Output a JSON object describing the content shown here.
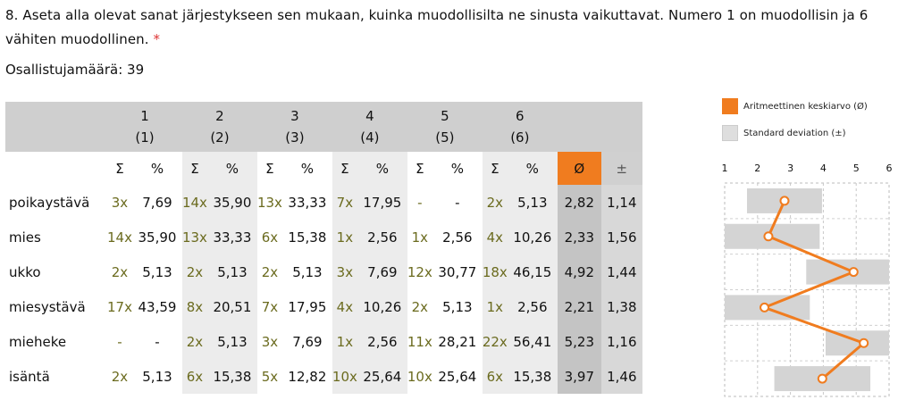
{
  "question": {
    "text": "8. Aseta alla olevat sanat järjestykseen sen mukaan, kuinka muodollisilta ne sinusta vaikuttavat. Numero 1 on muodollisin ja 6 vähiten muodollinen.",
    "required_mark": "*"
  },
  "participants": "Osallistujamäärä: 39",
  "table": {
    "ranks": [
      {
        "num": "1",
        "sub": "(1)"
      },
      {
        "num": "2",
        "sub": "(2)"
      },
      {
        "num": "3",
        "sub": "(3)"
      },
      {
        "num": "4",
        "sub": "(4)"
      },
      {
        "num": "5",
        "sub": "(5)"
      },
      {
        "num": "6",
        "sub": "(6)"
      }
    ],
    "sum_label": "Σ",
    "pct_label": "%",
    "avg_label": "Ø",
    "sd_label": "±",
    "rows": [
      {
        "word": "poikaystävä",
        "cells": [
          [
            "3x",
            "7,69"
          ],
          [
            "14x",
            "35,90"
          ],
          [
            "13x",
            "33,33"
          ],
          [
            "7x",
            "17,95"
          ],
          [
            "-",
            "-"
          ],
          [
            "2x",
            "5,13"
          ]
        ],
        "avg": "2,82",
        "sd": "1,14"
      },
      {
        "word": "mies",
        "cells": [
          [
            "14x",
            "35,90"
          ],
          [
            "13x",
            "33,33"
          ],
          [
            "6x",
            "15,38"
          ],
          [
            "1x",
            "2,56"
          ],
          [
            "1x",
            "2,56"
          ],
          [
            "4x",
            "10,26"
          ]
        ],
        "avg": "2,33",
        "sd": "1,56"
      },
      {
        "word": "ukko",
        "cells": [
          [
            "2x",
            "5,13"
          ],
          [
            "2x",
            "5,13"
          ],
          [
            "2x",
            "5,13"
          ],
          [
            "3x",
            "7,69"
          ],
          [
            "12x",
            "30,77"
          ],
          [
            "18x",
            "46,15"
          ]
        ],
        "avg": "4,92",
        "sd": "1,44"
      },
      {
        "word": "miesystävä",
        "cells": [
          [
            "17x",
            "43,59"
          ],
          [
            "8x",
            "20,51"
          ],
          [
            "7x",
            "17,95"
          ],
          [
            "4x",
            "10,26"
          ],
          [
            "2x",
            "5,13"
          ],
          [
            "1x",
            "2,56"
          ]
        ],
        "avg": "2,21",
        "sd": "1,38"
      },
      {
        "word": "mieheke",
        "cells": [
          [
            "-",
            "-"
          ],
          [
            "2x",
            "5,13"
          ],
          [
            "3x",
            "7,69"
          ],
          [
            "1x",
            "2,56"
          ],
          [
            "11x",
            "28,21"
          ],
          [
            "22x",
            "56,41"
          ]
        ],
        "avg": "5,23",
        "sd": "1,16"
      },
      {
        "word": "isäntä",
        "cells": [
          [
            "2x",
            "5,13"
          ],
          [
            "6x",
            "15,38"
          ],
          [
            "5x",
            "12,82"
          ],
          [
            "10x",
            "25,64"
          ],
          [
            "10x",
            "25,64"
          ],
          [
            "6x",
            "15,38"
          ]
        ],
        "avg": "3,97",
        "sd": "1,46"
      }
    ]
  },
  "legend": {
    "mean_label": "Aritmeettinen keskiarvo (Ø)",
    "sd_label": "Standard deviation (±)"
  },
  "chart_data": {
    "type": "line",
    "x_ticks": [
      "1",
      "2",
      "3",
      "4",
      "5",
      "6"
    ],
    "xlim": [
      1,
      6
    ],
    "categories": [
      "poikaystävä",
      "mies",
      "ukko",
      "miesystävä",
      "mieheke",
      "isäntä"
    ],
    "mean": [
      2.82,
      2.33,
      4.92,
      2.21,
      5.23,
      3.97
    ],
    "sd": [
      1.14,
      1.56,
      1.44,
      1.38,
      1.16,
      1.46
    ],
    "colors": {
      "mean": "#f07c1f",
      "sd": "#d4d4d4"
    }
  }
}
